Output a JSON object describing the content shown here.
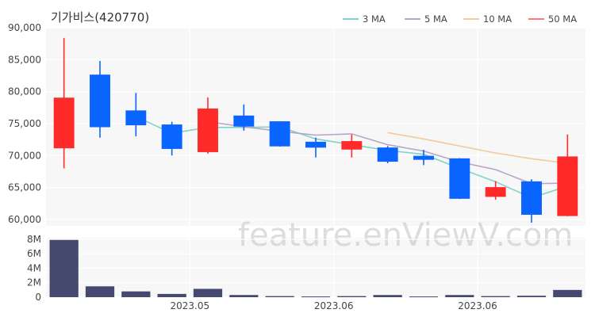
{
  "title": "기가비스(420770)",
  "watermark": "feature.enViewV.com",
  "colors": {
    "up": "#ff2a2a",
    "down": "#0a64ff",
    "volume": "#454970",
    "ma3": "#7fd3c9",
    "ma5": "#b6a6c6",
    "ma10": "#f3c99d",
    "ma50": "#ff7777",
    "plot_bg": "#f7f7f7",
    "grid": "#ffffff"
  },
  "legend": [
    {
      "label": "3 MA",
      "color": "#7fd3c9"
    },
    {
      "label": "5 MA",
      "color": "#b6a6c6"
    },
    {
      "label": "10 MA",
      "color": "#f3c99d"
    },
    {
      "label": "50 MA",
      "color": "#ff7777"
    }
  ],
  "chart_data": {
    "type": "candlestick",
    "price_axis": {
      "ylim": [
        59000,
        90000
      ],
      "ticks": [
        60000,
        65000,
        70000,
        75000,
        80000,
        85000,
        90000
      ],
      "tick_labels": [
        "60,000",
        "65,000",
        "70,000",
        "75,000",
        "80,000",
        "85,000",
        "90,000"
      ]
    },
    "volume_axis": {
      "ylim": [
        0,
        8200000
      ],
      "ticks": [
        0,
        2000000,
        4000000,
        6000000,
        8000000
      ],
      "tick_labels": [
        "0",
        "2M",
        "4M",
        "6M",
        "8M"
      ]
    },
    "x_tick_labels": [
      {
        "index": 4,
        "label": "2023.05"
      },
      {
        "index": 8,
        "label": "2023.06"
      },
      {
        "index": 12,
        "label": "2023.06"
      }
    ],
    "candles": [
      {
        "open": 71200,
        "high": 88400,
        "low": 68000,
        "close": 79000,
        "volume": 7900000
      },
      {
        "open": 82600,
        "high": 84800,
        "low": 72800,
        "close": 74500,
        "volume": 1500000
      },
      {
        "open": 77000,
        "high": 79800,
        "low": 73000,
        "close": 74800,
        "volume": 800000
      },
      {
        "open": 74800,
        "high": 75300,
        "low": 70000,
        "close": 71100,
        "volume": 450000
      },
      {
        "open": 70600,
        "high": 79100,
        "low": 70300,
        "close": 77300,
        "volume": 1150000
      },
      {
        "open": 76200,
        "high": 78000,
        "low": 73900,
        "close": 74600,
        "volume": 300000
      },
      {
        "open": 75300,
        "high": 75300,
        "low": 71400,
        "close": 71500,
        "volume": 150000
      },
      {
        "open": 72100,
        "high": 72800,
        "low": 69700,
        "close": 71300,
        "volume": 100000
      },
      {
        "open": 71000,
        "high": 73300,
        "low": 69700,
        "close": 72200,
        "volume": 150000
      },
      {
        "open": 71200,
        "high": 71500,
        "low": 68800,
        "close": 69100,
        "volume": 300000
      },
      {
        "open": 69900,
        "high": 70900,
        "low": 68500,
        "close": 69400,
        "volume": 100000
      },
      {
        "open": 69500,
        "high": 69600,
        "low": 63200,
        "close": 63300,
        "volume": 300000
      },
      {
        "open": 63600,
        "high": 66000,
        "low": 63100,
        "close": 65000,
        "volume": 150000
      },
      {
        "open": 65900,
        "high": 66300,
        "low": 59500,
        "close": 60800,
        "volume": 200000
      },
      {
        "open": 60600,
        "high": 73300,
        "low": 60500,
        "close": 69800,
        "volume": 1000000
      }
    ],
    "series": [
      {
        "name": "3 MA",
        "start_index": 2,
        "values": [
          76100,
          73500,
          74400,
          74400,
          74500,
          72600,
          71700,
          70800,
          70200,
          68000,
          65900,
          63400,
          65200
        ]
      },
      {
        "name": "5 MA",
        "start_index": 4,
        "values": [
          75300,
          74500,
          73800,
          73200,
          73400,
          71700,
          70700,
          69000,
          67800,
          65600,
          65700
        ]
      },
      {
        "name": "10 MA",
        "start_index": 9,
        "values": [
          73600,
          72600,
          71500,
          70400,
          69500,
          68800
        ]
      },
      {
        "name": "50 MA",
        "start_index": null,
        "values": []
      }
    ]
  }
}
